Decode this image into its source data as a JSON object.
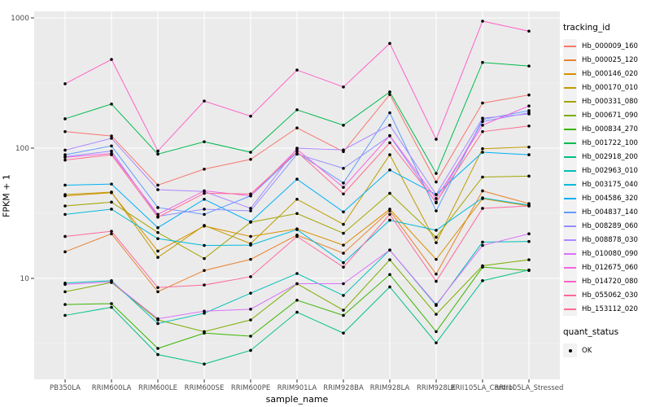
{
  "chart_data": {
    "type": "line",
    "title": "",
    "xlabel": "sample_name",
    "ylabel": "FPKM + 1",
    "x_categories": [
      "PB350LA",
      "RRIM600LA",
      "RRIM600LE",
      "RRIM600SE",
      "RRIM600PE",
      "RRIM901LA",
      "RRIM928BA",
      "RRIM928LA",
      "RRIM928LE",
      "RRII105LA_Control",
      "RRII105LA_Stressed"
    ],
    "y_scale": "log10",
    "y_ticks": [
      10,
      100,
      1000
    ],
    "y_tick_labels": [
      "10",
      "100",
      "1000"
    ],
    "y_minor_ticks": [
      3.162,
      31.62,
      316.2
    ],
    "ylim": [
      1.7,
      1120
    ],
    "grid": "white major and minor on gray panel",
    "legend_position": "right",
    "panel_bg": "#EBEBEB",
    "grid_color": "#FFFFFF",
    "tick_color": "#333333",
    "tick_label_color": "#4D4D4D",
    "point_color": "#000000",
    "legends": {
      "tracking": {
        "title": "tracking_id"
      },
      "quant": {
        "title": "quant_status",
        "items": [
          {
            "label": "OK",
            "marker": "black-point"
          }
        ]
      }
    },
    "series": [
      {
        "name": "Hb_000009_160",
        "color": "#F8766D",
        "values": [
          134,
          124,
          52,
          69,
          82,
          143,
          94,
          258,
          55,
          222,
          256
        ]
      },
      {
        "name": "Hb_000025_120",
        "color": "#EA8331",
        "values": [
          16,
          22,
          7.9,
          11.5,
          14,
          21.5,
          15.6,
          33,
          10.8,
          47,
          37.5
        ]
      },
      {
        "name": "Hb_000146_020",
        "color": "#D89000",
        "values": [
          43,
          45.5,
          16.2,
          25.2,
          21,
          24,
          18,
          34,
          14,
          41,
          36
        ]
      },
      {
        "name": "Hb_000170_010",
        "color": "#C09B00",
        "values": [
          44,
          46,
          14.5,
          25.5,
          18.5,
          40.5,
          26,
          89,
          18.8,
          99,
          102
        ]
      },
      {
        "name": "Hb_000331_080",
        "color": "#A3A500",
        "values": [
          36,
          38.5,
          22.5,
          14.2,
          27,
          31.5,
          22.2,
          45,
          20.7,
          60,
          61
        ]
      },
      {
        "name": "Hb_000671_090",
        "color": "#7CAE00",
        "values": [
          7.9,
          9.3,
          4.8,
          3.9,
          4.8,
          9.1,
          5.7,
          13.9,
          5.3,
          12.5,
          13.9
        ]
      },
      {
        "name": "Hb_000834_270",
        "color": "#39B600",
        "values": [
          6.3,
          6.4,
          2.9,
          3.8,
          3.6,
          6.8,
          5.2,
          10.7,
          3.9,
          12.2,
          11.5
        ]
      },
      {
        "name": "Hb_001722_100",
        "color": "#00BB4E",
        "values": [
          168,
          218,
          90,
          112,
          93,
          197,
          150,
          270,
          64,
          455,
          427
        ]
      },
      {
        "name": "Hb_002918_200",
        "color": "#00C087",
        "values": [
          5.2,
          6.0,
          2.6,
          2.2,
          2.8,
          5.5,
          3.8,
          8.6,
          3.2,
          9.6,
          11.6
        ]
      },
      {
        "name": "Hb_002963_010",
        "color": "#00C0B8",
        "values": [
          9.2,
          9.6,
          4.5,
          5.4,
          7.7,
          10.9,
          7.4,
          16.5,
          6.2,
          19,
          19.2
        ]
      },
      {
        "name": "Hb_003175_040",
        "color": "#00BCD8",
        "values": [
          31,
          34,
          20.2,
          17.9,
          18,
          23.7,
          13.2,
          28,
          23.4,
          41.5,
          36.5
        ]
      },
      {
        "name": "Hb_004586_320",
        "color": "#00B0F6",
        "values": [
          52,
          53,
          24.5,
          40.5,
          27.2,
          57.8,
          32.4,
          68,
          44,
          93,
          89
        ]
      },
      {
        "name": "Hb_004837_140",
        "color": "#619CFF",
        "values": [
          89,
          104,
          35,
          31,
          43,
          92.5,
          54,
          187,
          33,
          166,
          194
        ]
      },
      {
        "name": "Hb_008289_060",
        "color": "#9590FF",
        "values": [
          86,
          95,
          30,
          34,
          33,
          90,
          70,
          124,
          38,
          160,
          187
        ]
      },
      {
        "name": "Hb_008878_030",
        "color": "#AC88FF",
        "values": [
          96.5,
          119,
          48,
          46.5,
          34.5,
          100,
          97,
          150,
          44,
          170,
          183
        ]
      },
      {
        "name": "Hb_010080_090",
        "color": "#DC71FA",
        "values": [
          9.0,
          9.4,
          4.9,
          5.6,
          5.8,
          9.1,
          9.1,
          16.5,
          6.3,
          17.9,
          22
        ]
      },
      {
        "name": "Hb_012675_060",
        "color": "#F763E0",
        "values": [
          85,
          91,
          31,
          47,
          43,
          98,
          50,
          125,
          41,
          150,
          211
        ]
      },
      {
        "name": "Hb_014720_080",
        "color": "#FF61C7",
        "values": [
          312,
          480,
          95,
          230,
          176,
          398,
          295,
          637,
          117,
          944,
          791
        ]
      },
      {
        "name": "Hb_055062_030",
        "color": "#FF689E",
        "values": [
          21,
          23,
          8.5,
          8.9,
          10.3,
          21,
          12.2,
          31,
          9.5,
          34.5,
          36
        ]
      },
      {
        "name": "Hb_153112_020",
        "color": "#FF6C92",
        "values": [
          81,
          89,
          29.5,
          45,
          44.5,
          94,
          44.5,
          110,
          38.5,
          134,
          148
        ]
      }
    ]
  }
}
